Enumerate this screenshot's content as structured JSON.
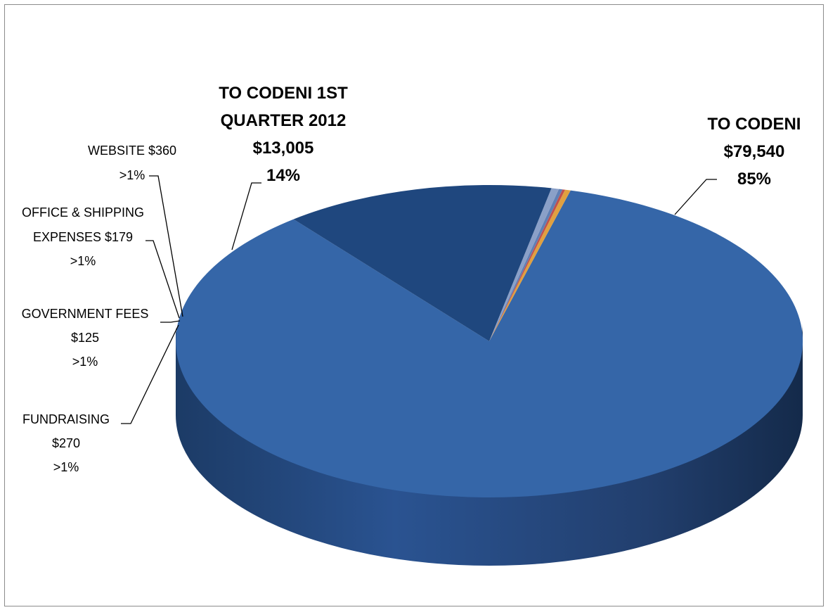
{
  "chart_data": {
    "type": "pie",
    "style": "3d",
    "slices": [
      {
        "label": "TO CODENI",
        "amount": "$79,540",
        "value": 79540,
        "percent": "85%",
        "color": "#3566A8"
      },
      {
        "label": "TO CODENI 1ST QUARTER 2012",
        "amount": "$13,005",
        "value": 13005,
        "percent": "14%",
        "color": "#1F477E"
      },
      {
        "label": "WEBSITE",
        "amount": "$360",
        "value": 360,
        "percent": ">1%",
        "color": "#8AA0C8"
      },
      {
        "label": "OFFICE & SHIPPING EXPENSES",
        "amount": "$179",
        "value": 179,
        "percent": ">1%",
        "color": "#5F7FB5"
      },
      {
        "label": "GOVERNMENT FEES",
        "amount": "$125",
        "value": 125,
        "percent": ">1%",
        "color": "#C0504D"
      },
      {
        "label": "FUNDRAISING",
        "amount": "$270",
        "value": 270,
        "percent": ">1%",
        "color": "#E0A040"
      }
    ]
  },
  "labels": {
    "codeni": {
      "line1": "TO CODENI",
      "line2": "$79,540",
      "line3": "85%"
    },
    "q1": {
      "line1": "TO CODENI 1ST",
      "line2": "QUARTER 2012",
      "line3": "$13,005",
      "line4": "14%"
    },
    "website": {
      "line1": "WEBSITE $360",
      "line2": ">1%"
    },
    "office": {
      "line1": "OFFICE & SHIPPING",
      "line2": "EXPENSES $179",
      "line3": ">1%"
    },
    "gov": {
      "line1": "GOVERNMENT FEES",
      "line2": "$125",
      "line3": ">1%"
    },
    "fund": {
      "line1": "FUNDRAISING",
      "line2": "$270",
      "line3": ">1%"
    }
  }
}
